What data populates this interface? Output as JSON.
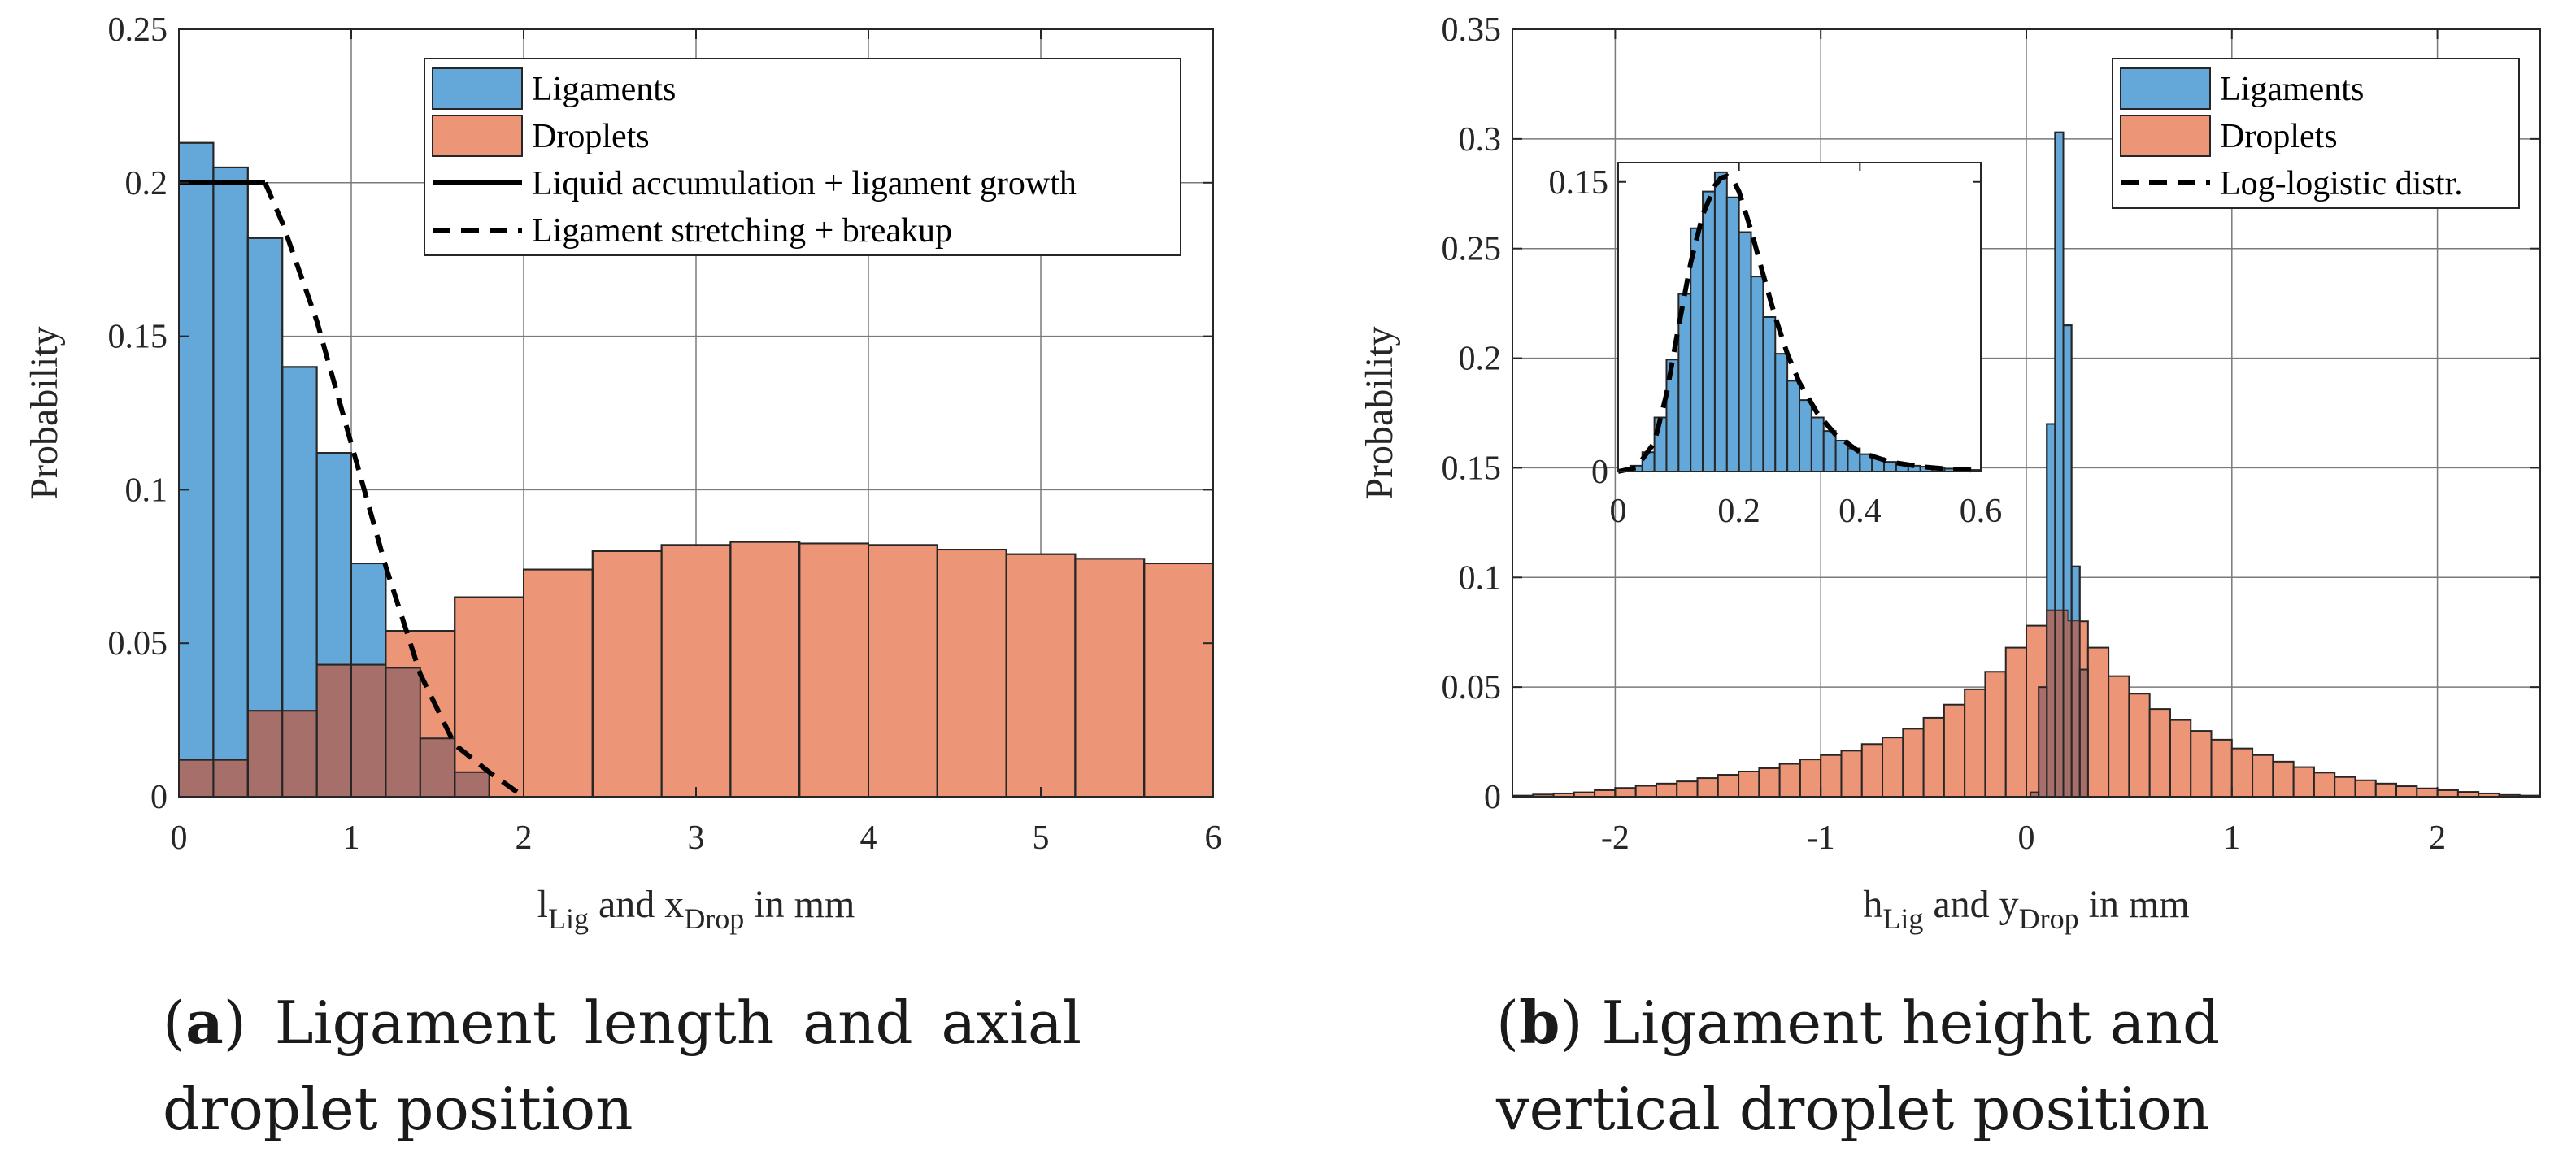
{
  "colors": {
    "ligaments_fill": "#63a8d9",
    "droplets_fill": "#ed9677",
    "overlap_fill": "#a66f6a",
    "bar_edge": "#262626",
    "grid": "#7a7a7a"
  },
  "captions": {
    "a_label": "a",
    "a_text": "Ligament length and axial droplet position",
    "b_label": "b",
    "b_text": "Ligament height and vertical droplet position"
  },
  "chart_data": [
    {
      "type": "bar",
      "id": "a",
      "ylabel": "Probability",
      "xlabel_parts": [
        "l",
        "Lig",
        " and x",
        "Drop",
        " in mm"
      ],
      "xlim": [
        0,
        6
      ],
      "ylim": [
        0,
        0.25
      ],
      "xticks": [
        "0",
        "1",
        "2",
        "3",
        "4",
        "5",
        "6"
      ],
      "yticks": [
        "0",
        "0.05",
        "0.1",
        "0.15",
        "0.2",
        "0.25"
      ],
      "grid": true,
      "legend_position": "top-right",
      "series": [
        {
          "name": "Ligaments",
          "kind": "histogram",
          "bin_edges": [
            0,
            0.2,
            0.4,
            0.6,
            0.8,
            1.0,
            1.2,
            1.4,
            1.6,
            1.8
          ],
          "values": [
            0.213,
            0.205,
            0.182,
            0.14,
            0.112,
            0.076,
            0.042,
            0.019,
            0.008
          ]
        },
        {
          "name": "Droplets",
          "kind": "histogram",
          "bin_edges": [
            0,
            0.4,
            0.8,
            1.2,
            1.6,
            2.0,
            2.4,
            2.8,
            3.2,
            3.6,
            4.0,
            4.4,
            4.8,
            5.2,
            5.6,
            6.0
          ],
          "values": [
            0.012,
            0.028,
            0.043,
            0.054,
            0.065,
            0.074,
            0.08,
            0.082,
            0.083,
            0.0825,
            0.082,
            0.0805,
            0.079,
            0.0775,
            0.076
          ]
        },
        {
          "name": "Liquid accumulation + ligament growth",
          "kind": "line",
          "style": "solid",
          "x": [
            0,
            0.5
          ],
          "y": [
            0.2,
            0.2
          ]
        },
        {
          "name": "Ligament stretching + breakup",
          "kind": "line",
          "style": "dashed",
          "x": [
            0.5,
            0.6,
            0.8,
            1.0,
            1.2,
            1.4,
            1.6,
            1.8,
            2.0
          ],
          "y": [
            0.2,
            0.187,
            0.155,
            0.115,
            0.075,
            0.04,
            0.017,
            0.008,
            0.0
          ]
        }
      ]
    },
    {
      "type": "bar",
      "id": "b",
      "ylabel": "Probability",
      "xlabel_parts": [
        "h",
        "Lig",
        " and y",
        "Drop",
        " in mm"
      ],
      "xlim": [
        -2.5,
        2.5
      ],
      "ylim": [
        0,
        0.35
      ],
      "xticks": [
        "-2",
        "-1",
        "0",
        "1",
        "2"
      ],
      "yticks": [
        "0",
        "0.05",
        "0.1",
        "0.15",
        "0.2",
        "0.25",
        "0.3",
        "0.35"
      ],
      "grid": true,
      "legend_position": "top-right",
      "series": [
        {
          "name": "Ligaments",
          "kind": "histogram",
          "bin_edges": [
            0.02,
            0.06,
            0.1,
            0.14,
            0.18,
            0.22,
            0.26,
            0.3
          ],
          "values": [
            0.002,
            0.05,
            0.17,
            0.303,
            0.215,
            0.105,
            0.058
          ]
        },
        {
          "name": "Droplets",
          "kind": "histogram",
          "bin_edges": [
            -2.5,
            -2.4,
            -2.3,
            -2.2,
            -2.1,
            -2.0,
            -1.9,
            -1.8,
            -1.7,
            -1.6,
            -1.5,
            -1.4,
            -1.3,
            -1.2,
            -1.1,
            -1.0,
            -0.9,
            -0.8,
            -0.7,
            -0.6,
            -0.5,
            -0.4,
            -0.3,
            -0.2,
            -0.1,
            0.0,
            0.1,
            0.2,
            0.3,
            0.4,
            0.5,
            0.6,
            0.7,
            0.8,
            0.9,
            1.0,
            1.1,
            1.2,
            1.3,
            1.4,
            1.5,
            1.6,
            1.7,
            1.8,
            1.9,
            2.0,
            2.1,
            2.2,
            2.3,
            2.4,
            2.5
          ],
          "values": [
            0.0005,
            0.001,
            0.0015,
            0.002,
            0.003,
            0.004,
            0.005,
            0.006,
            0.007,
            0.0085,
            0.01,
            0.0115,
            0.013,
            0.015,
            0.017,
            0.019,
            0.021,
            0.024,
            0.027,
            0.031,
            0.036,
            0.042,
            0.049,
            0.057,
            0.068,
            0.078,
            0.085,
            0.08,
            0.068,
            0.055,
            0.047,
            0.04,
            0.035,
            0.03,
            0.026,
            0.022,
            0.019,
            0.016,
            0.0135,
            0.011,
            0.009,
            0.0075,
            0.006,
            0.0048,
            0.0038,
            0.003,
            0.0022,
            0.0015,
            0.0008,
            0.0005
          ]
        },
        {
          "name": "Log-logistic distr.",
          "kind": "line",
          "style": "dashed",
          "x": [],
          "y": []
        }
      ],
      "inset": {
        "xlim": [
          0,
          0.6
        ],
        "ylim": [
          0,
          0.16
        ],
        "xticks": [
          "0",
          "0.2",
          "0.4",
          "0.6"
        ],
        "yticks": [
          "0",
          "0.15"
        ],
        "histogram": {
          "bin_edges": [
            0.0,
            0.02,
            0.04,
            0.06,
            0.08,
            0.1,
            0.12,
            0.14,
            0.16,
            0.18,
            0.2,
            0.22,
            0.24,
            0.26,
            0.28,
            0.3,
            0.32,
            0.34,
            0.36,
            0.38,
            0.4,
            0.42,
            0.44,
            0.46,
            0.48,
            0.5,
            0.52,
            0.54,
            0.56,
            0.58,
            0.6
          ],
          "values": [
            0.0005,
            0.003,
            0.01,
            0.028,
            0.058,
            0.092,
            0.126,
            0.145,
            0.155,
            0.142,
            0.124,
            0.101,
            0.08,
            0.061,
            0.047,
            0.037,
            0.028,
            0.021,
            0.016,
            0.012,
            0.009,
            0.007,
            0.005,
            0.004,
            0.003,
            0.0025,
            0.002,
            0.0015,
            0.001,
            0.0008
          ]
        },
        "curve": {
          "x": [
            0.0,
            0.03,
            0.06,
            0.08,
            0.1,
            0.12,
            0.14,
            0.16,
            0.17,
            0.18,
            0.19,
            0.2,
            0.22,
            0.24,
            0.26,
            0.28,
            0.3,
            0.33,
            0.36,
            0.4,
            0.45,
            0.5,
            0.55,
            0.6
          ],
          "y": [
            0.0,
            0.002,
            0.015,
            0.04,
            0.075,
            0.108,
            0.133,
            0.148,
            0.152,
            0.153,
            0.151,
            0.145,
            0.125,
            0.102,
            0.08,
            0.061,
            0.046,
            0.03,
            0.019,
            0.01,
            0.005,
            0.0025,
            0.0012,
            0.0006
          ]
        }
      }
    }
  ]
}
